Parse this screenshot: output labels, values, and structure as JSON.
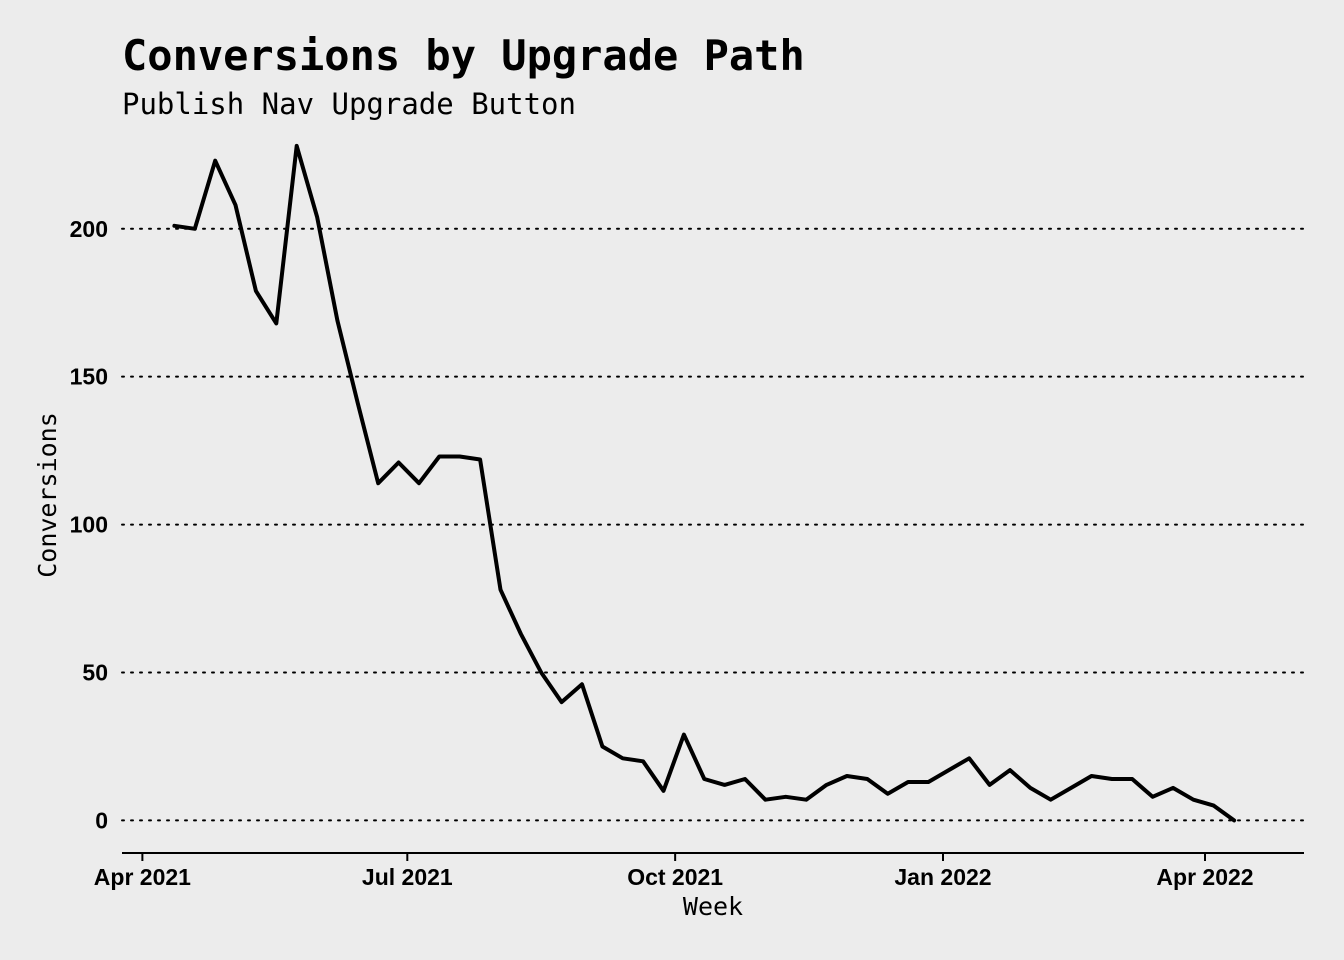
{
  "chart_data": {
    "type": "line",
    "title": "Conversions by Upgrade Path",
    "subtitle": "Publish Nav Upgrade Button",
    "xlabel": "Week",
    "ylabel": "Conversions",
    "ylim": [
      -10,
      230
    ],
    "xlim": [
      "2021-03-25",
      "2022-05-05"
    ],
    "grid": "horizontal dotted",
    "colors": {
      "background": "#ececec",
      "line": "#000000"
    },
    "y_ticks": [
      0,
      50,
      100,
      150,
      200
    ],
    "x_ticks": [
      {
        "date": "2021-04-01",
        "label": "Apr 2021"
      },
      {
        "date": "2021-07-01",
        "label": "Jul 2021"
      },
      {
        "date": "2021-10-01",
        "label": "Oct 2021"
      },
      {
        "date": "2022-01-01",
        "label": "Jan 2022"
      },
      {
        "date": "2022-04-01",
        "label": "Apr 2022"
      }
    ],
    "series": [
      {
        "x": [
          "2021-04-12",
          "2021-04-19",
          "2021-04-26",
          "2021-05-03",
          "2021-05-10",
          "2021-05-17",
          "2021-05-24",
          "2021-05-31",
          "2021-06-07",
          "2021-06-14",
          "2021-06-21",
          "2021-06-28",
          "2021-07-05",
          "2021-07-12",
          "2021-07-19",
          "2021-07-26",
          "2021-08-02",
          "2021-08-09",
          "2021-08-16",
          "2021-08-23",
          "2021-08-30",
          "2021-09-06",
          "2021-09-13",
          "2021-09-20",
          "2021-09-27",
          "2021-10-04",
          "2021-10-11",
          "2021-10-18",
          "2021-10-25",
          "2021-11-01",
          "2021-11-08",
          "2021-11-15",
          "2021-11-22",
          "2021-11-29",
          "2021-12-06",
          "2021-12-13",
          "2021-12-20",
          "2021-12-27",
          "2022-01-03",
          "2022-01-10",
          "2022-01-17",
          "2022-01-24",
          "2022-01-31",
          "2022-02-07",
          "2022-02-14",
          "2022-02-21",
          "2022-02-28",
          "2022-03-07",
          "2022-03-14",
          "2022-03-21",
          "2022-03-28",
          "2022-04-04",
          "2022-04-11"
        ],
        "values": [
          201,
          200,
          223,
          208,
          179,
          168,
          228,
          204,
          169,
          141,
          114,
          121,
          114,
          123,
          123,
          122,
          78,
          63,
          50,
          40,
          46,
          25,
          21,
          20,
          10,
          29,
          14,
          12,
          14,
          7,
          8,
          7,
          12,
          15,
          14,
          9,
          13,
          13,
          17,
          21,
          12,
          17,
          11,
          7,
          11,
          15,
          14,
          14,
          8,
          11,
          7,
          5,
          0
        ]
      }
    ]
  }
}
